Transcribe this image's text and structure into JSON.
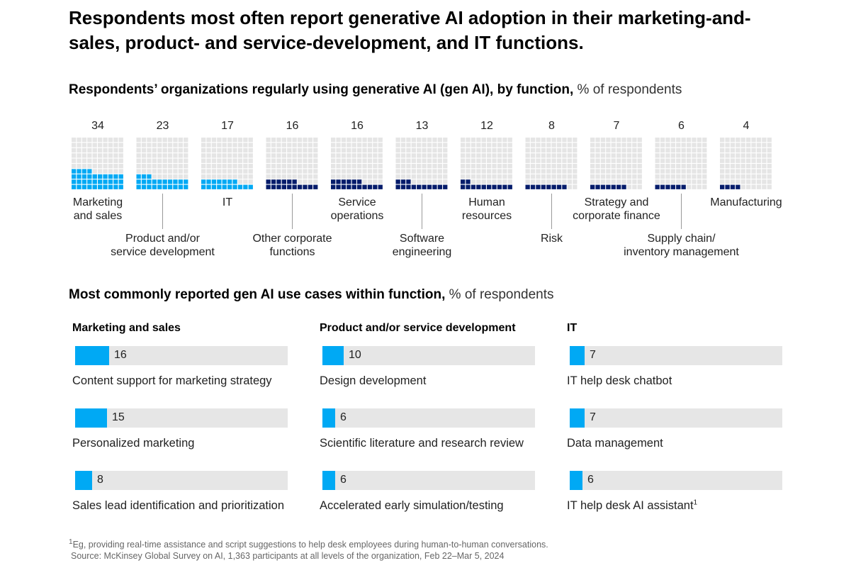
{
  "headline": "Respondents most often report generative AI adoption in their marketing-and-sales, product- and service-development, and IT functions.",
  "section1": {
    "title": "Respondents’ organizations regularly using generative AI (gen AI), by function,",
    "unit": " % of respondents"
  },
  "section2": {
    "title": "Most commonly reported gen AI use cases within function,",
    "unit": " % of respondents"
  },
  "colors": {
    "light_blue": "#00a9f4",
    "dark_blue": "#051c6b",
    "empty": "#e5e5e5",
    "track": "#e6e6e6"
  },
  "chart_data": [
    {
      "type": "waffle",
      "title": "Respondents’ organizations regularly using generative AI (gen AI), by function",
      "unit": "% of respondents",
      "grid": "10x10",
      "categories": [
        "Marketing and sales",
        "Product and/or service development",
        "IT",
        "Other corporate functions",
        "Service operations",
        "Software engineering",
        "Human resources",
        "Risk",
        "Strategy and corporate finance",
        "Supply chain/ inventory management",
        "Manufacturing"
      ],
      "labels": [
        "Marketing\nand sales",
        "Product and/or\nservice development",
        "IT",
        "Other corporate\nfunctions",
        "Service\noperations",
        "Software\nengineering",
        "Human\nresources",
        "Risk",
        "Strategy and\ncorporate finance",
        "Supply chain/\ninventory management",
        "Manufacturing"
      ],
      "values": [
        34,
        23,
        17,
        16,
        16,
        13,
        12,
        8,
        7,
        6,
        4
      ],
      "highlight": [
        true,
        true,
        true,
        false,
        false,
        false,
        false,
        false,
        false,
        false,
        false
      ]
    },
    {
      "type": "bar",
      "title": "Marketing and sales",
      "categories": [
        "Content support for marketing strategy",
        "Personalized marketing",
        "Sales lead identification and prioritization"
      ],
      "values": [
        16,
        15,
        8
      ],
      "ylim": [
        0,
        100
      ]
    },
    {
      "type": "bar",
      "title": "Product and/or service development",
      "categories": [
        "Design development",
        "Scientific literature and research review",
        "Accelerated early simulation/testing"
      ],
      "values": [
        10,
        6,
        6
      ],
      "ylim": [
        0,
        100
      ]
    },
    {
      "type": "bar",
      "title": "IT",
      "categories": [
        "IT help desk chatbot",
        "Data management",
        "IT help desk AI assistant"
      ],
      "category_notes": [
        "",
        "",
        "1"
      ],
      "values": [
        7,
        7,
        6
      ],
      "ylim": [
        0,
        100
      ]
    }
  ],
  "footnotes": {
    "note_mark": "1",
    "note": "Eg, providing real-time assistance and script suggestions to help desk employees during human-to-human conversations.",
    "source": "Source: McKinsey Global Survey on AI, 1,363 participants at all levels of the organization, Feb 22–Mar 5, 2024"
  }
}
